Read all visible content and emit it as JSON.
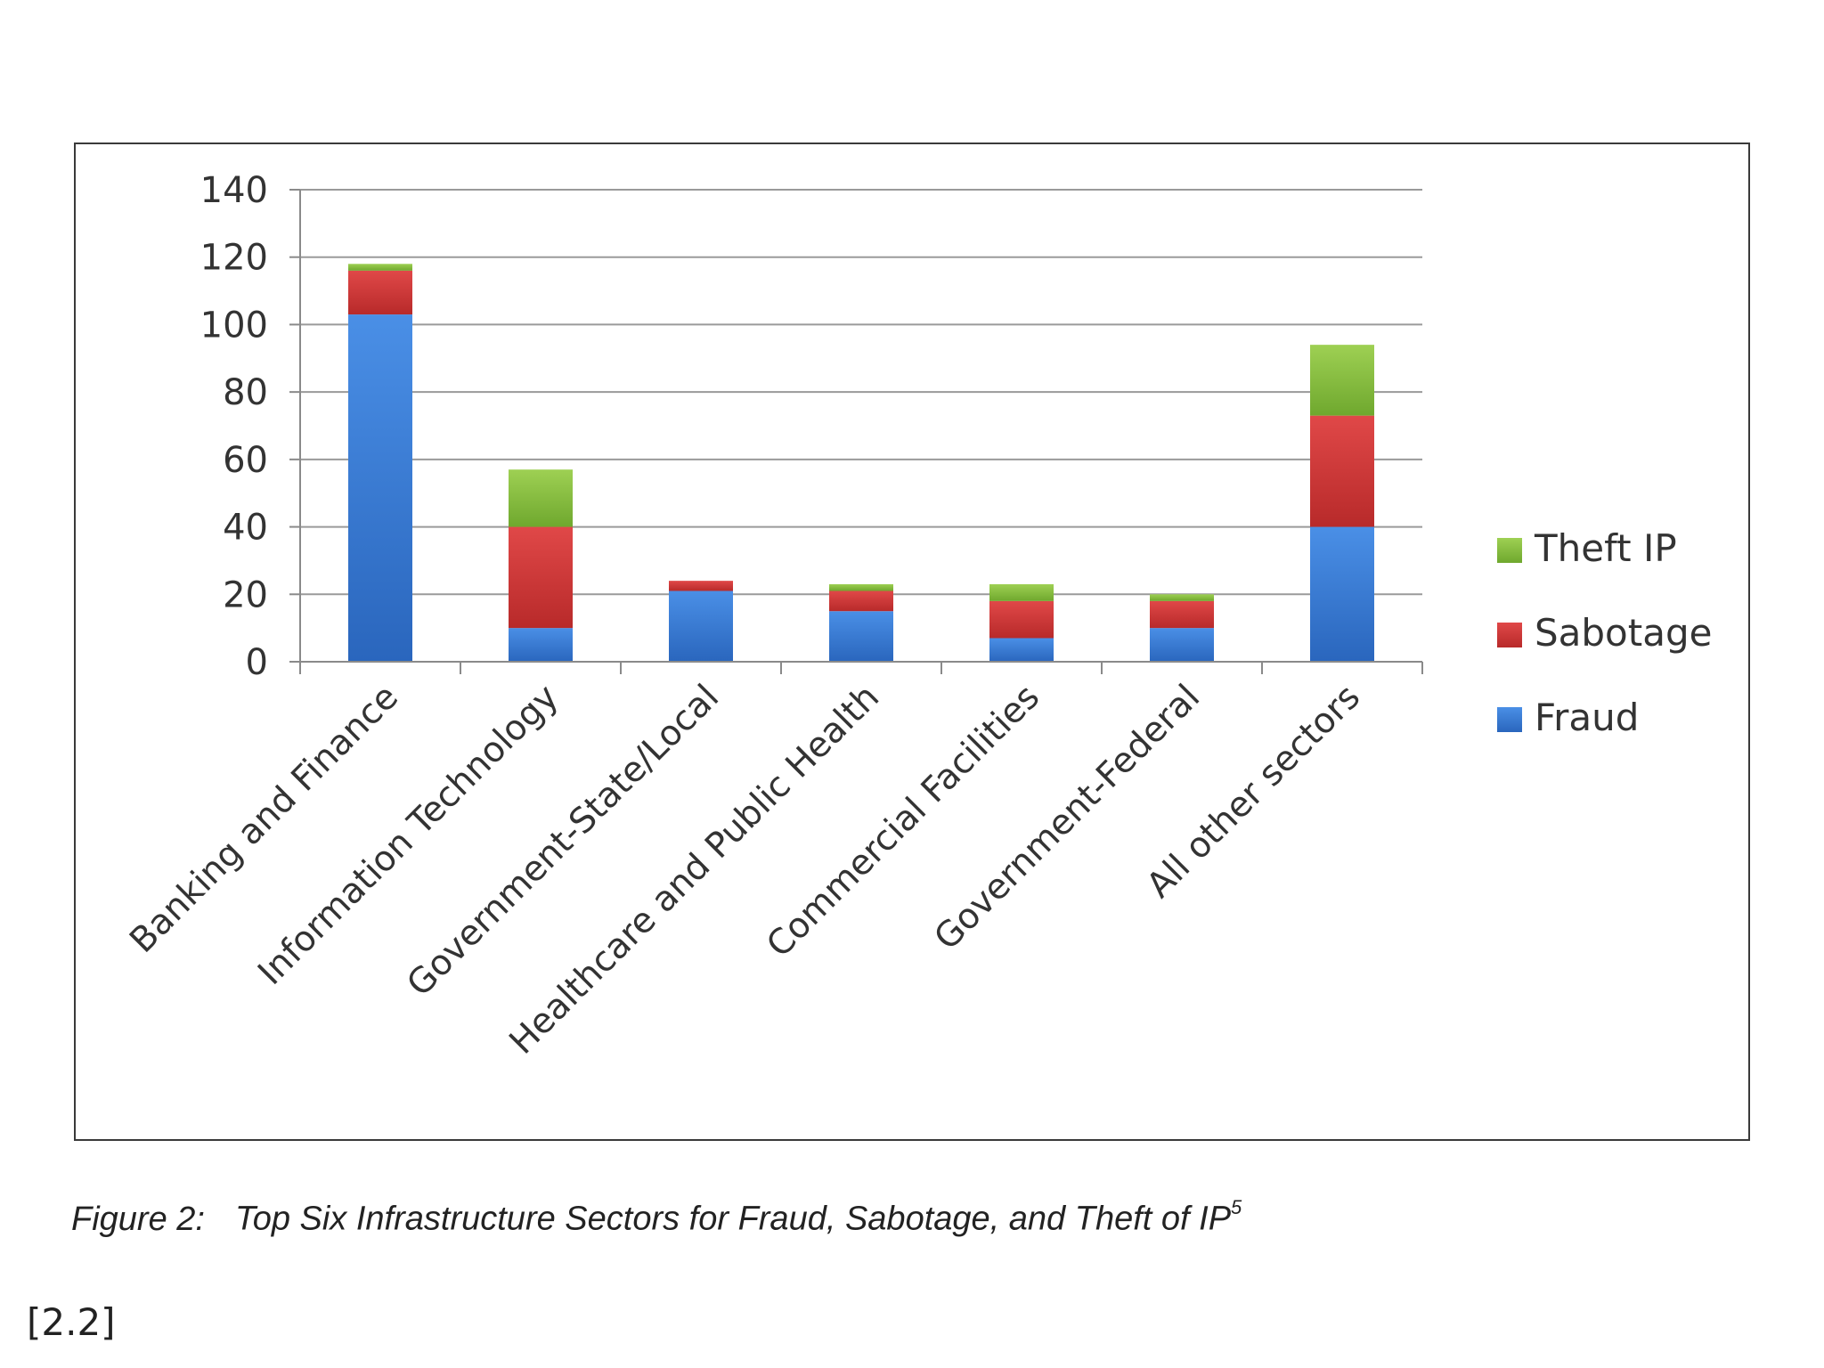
{
  "chart_data": {
    "type": "bar",
    "stacked": true,
    "categories": [
      "Banking and Finance",
      "Information Technology",
      "Government-State/Local",
      "Healthcare and Public Health",
      "Commercial Facilities",
      "Government-Federal",
      "All other sectors"
    ],
    "series": [
      {
        "name": "Fraud",
        "color": "#3b7dd8",
        "values": [
          103,
          10,
          21,
          15,
          7,
          10,
          40
        ]
      },
      {
        "name": "Sabotage",
        "color": "#d23a3a",
        "values": [
          13,
          30,
          3,
          6,
          11,
          8,
          33
        ]
      },
      {
        "name": "Theft IP",
        "color": "#8bc53f",
        "values": [
          2,
          17,
          0,
          2,
          5,
          2,
          21
        ]
      }
    ],
    "legend_order": [
      "Theft IP",
      "Sabotage",
      "Fraud"
    ],
    "legend_position": "right",
    "ylim": [
      0,
      140
    ],
    "yticks": [
      0,
      20,
      40,
      60,
      80,
      100,
      120,
      140
    ],
    "grid": true,
    "title": "",
    "xlabel": "",
    "ylabel": ""
  },
  "caption": {
    "prefix": "Figure 2:",
    "text": "Top Six Infrastructure Sectors for Fraud, Sabotage, and Theft of IP",
    "superscript": "5"
  },
  "reference": "[2.2]"
}
